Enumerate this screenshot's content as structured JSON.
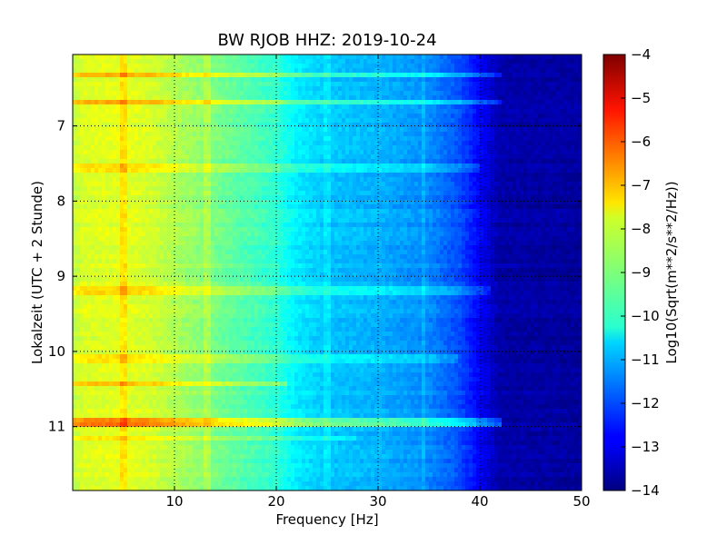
{
  "chart_data": {
    "type": "heatmap",
    "title": "BW RJOB HHZ: 2019-10-24",
    "xlabel": "Frequency [Hz]",
    "ylabel": "Lokalzeit (UTC + 2 Stunde)",
    "xlim": [
      0,
      50
    ],
    "ylim": [
      11.85,
      6.05
    ],
    "y_inverted": true,
    "x_ticks": [
      10,
      20,
      30,
      40,
      50
    ],
    "x_tick_labels": [
      "10",
      "20",
      "30",
      "40",
      "50"
    ],
    "y_ticks": [
      7,
      8,
      9,
      10,
      11
    ],
    "y_tick_labels": [
      "7",
      "8",
      "9",
      "10",
      "11"
    ],
    "grid": true,
    "colormap": "jet",
    "colorbar": {
      "label": "Log10(Sqrt(m**2/s**2/Hz))",
      "range": [
        -14,
        -4
      ],
      "ticks": [
        -4,
        -5,
        -6,
        -7,
        -8,
        -9,
        -10,
        -11,
        -12,
        -13,
        -14
      ],
      "tick_labels": [
        "−4",
        "−5",
        "−6",
        "−7",
        "−8",
        "−9",
        "−10",
        "−11",
        "−12",
        "−13",
        "−14"
      ]
    },
    "spectrum_profile": {
      "frequency_hz": [
        0,
        1,
        5,
        8,
        10,
        15,
        20,
        22,
        25,
        30,
        35,
        38,
        40,
        42,
        50
      ],
      "log10_amplitude": [
        -8.4,
        -8.1,
        -8.0,
        -8.2,
        -8.5,
        -9.2,
        -9.8,
        -10.4,
        -10.8,
        -11.0,
        -11.4,
        -12.0,
        -12.8,
        -13.6,
        -13.7
      ]
    },
    "horizontal_bands": [
      {
        "time": 6.33,
        "fmax": 42,
        "delta": 1.0
      },
      {
        "time": 6.68,
        "fmax": 42,
        "delta": 1.0
      },
      {
        "time": 7.55,
        "fmax": 40,
        "delta": 0.5
      },
      {
        "time": 9.18,
        "fmax": 41,
        "delta": 0.7
      },
      {
        "time": 10.1,
        "fmax": 38,
        "delta": 0.6
      },
      {
        "time": 10.42,
        "fmax": 21,
        "delta": 0.9
      },
      {
        "time": 10.93,
        "fmax": 42,
        "delta": 1.6
      },
      {
        "time": 11.15,
        "fmax": 28,
        "delta": 0.5
      }
    ],
    "vertical_lines": [
      {
        "frequency": 5.0,
        "delta": 0.5
      },
      {
        "frequency": 13.2,
        "delta": 0.4
      },
      {
        "frequency": 25.0,
        "delta": 0.3
      },
      {
        "frequency": 34.5,
        "delta": 0.3
      }
    ]
  }
}
